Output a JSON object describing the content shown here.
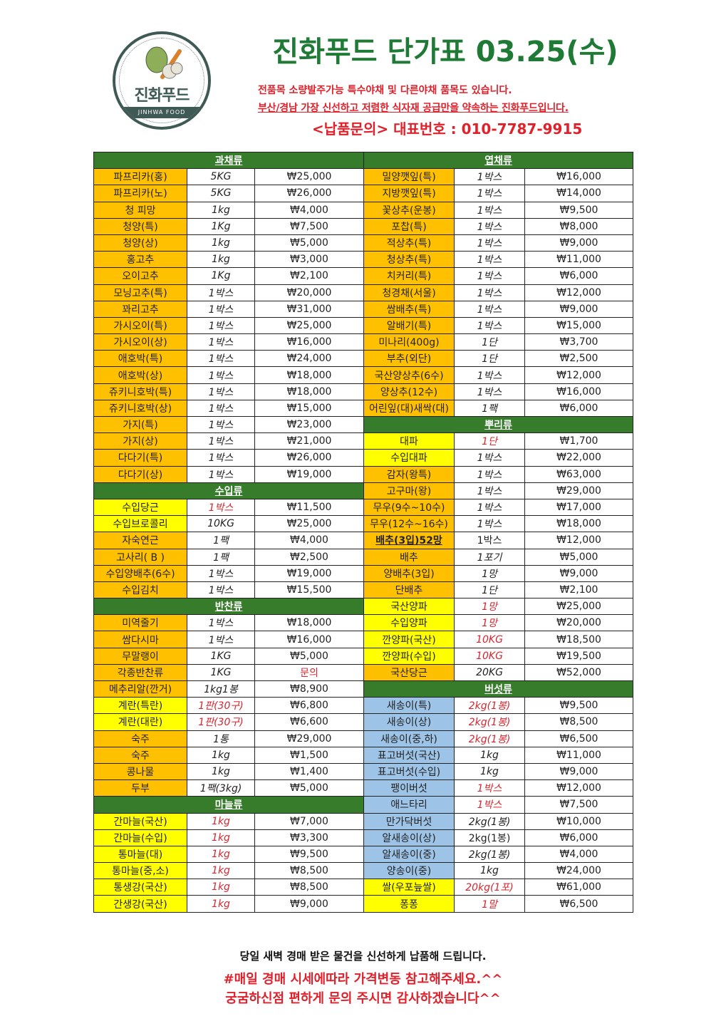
{
  "logo": {
    "name": "진화푸드",
    "english": "JINHWA FOOD"
  },
  "header": {
    "title": "진화푸드 단가표 03.25(수)",
    "line1": "전품목 소량발주가능 특수야채 및 다른야채 품목도 있습니다.",
    "line2": "부산/경남 가장 신선하고 저렴한 식자재 공급만을 약속하는 진화푸드입니다.",
    "phone": "<납품문의> 대표번호 : 010-7787-9915"
  },
  "colors": {
    "header_green": "#367c2b",
    "o": "#FFC000",
    "y": "#FFFF00",
    "b": "#9DC3E6",
    "red": "#d8262e",
    "title_green": "#1f7a36"
  },
  "left": [
    {
      "header": "과채류"
    },
    {
      "name": "파프리카(홍)",
      "unit": "5KG",
      "price": "₩25,000",
      "bg": "o"
    },
    {
      "name": "파프리카(노)",
      "unit": "5KG",
      "price": "₩26,000",
      "bg": "o"
    },
    {
      "name": "청 피망",
      "unit": "1kg",
      "price": "₩4,000",
      "bg": "o"
    },
    {
      "name": "청양(특)",
      "unit": "1Kg",
      "price": "₩7,500",
      "bg": "o"
    },
    {
      "name": "청양(상)",
      "unit": "1kg",
      "price": "₩5,000",
      "bg": "o"
    },
    {
      "name": "홍고추",
      "unit": "1kg",
      "price": "₩3,000",
      "bg": "o"
    },
    {
      "name": "오이고추",
      "unit": "1Kg",
      "price": "₩2,100",
      "bg": "o"
    },
    {
      "name": "모닝고추(특)",
      "unit": "1박스",
      "price": "₩20,000",
      "bg": "o"
    },
    {
      "name": "꽈리고추",
      "unit": "1박스",
      "price": "₩31,000",
      "bg": "o"
    },
    {
      "name": "가시오이(특)",
      "unit": "1박스",
      "price": "₩25,000",
      "bg": "o"
    },
    {
      "name": "가시오이(상)",
      "unit": "1박스",
      "price": "₩16,000",
      "bg": "o"
    },
    {
      "name": "애호박(특)",
      "unit": "1박스",
      "price": "₩24,000",
      "bg": "o"
    },
    {
      "name": "애호박(상)",
      "unit": "1박스",
      "price": "₩18,000",
      "bg": "o"
    },
    {
      "name": "쥬키니호박(특)",
      "unit": "1박스",
      "price": "₩18,000",
      "bg": "o"
    },
    {
      "name": "쥬키니호박(상)",
      "unit": "1박스",
      "price": "₩15,000",
      "bg": "o"
    },
    {
      "name": "가지(특)",
      "unit": "1박스",
      "price": "₩23,000",
      "bg": "o"
    },
    {
      "name": "가지(상)",
      "unit": "1박스",
      "price": "₩21,000",
      "bg": "o"
    },
    {
      "name": "다다기(특)",
      "unit": "1박스",
      "price": "₩26,000",
      "bg": "o"
    },
    {
      "name": "다다기(상)",
      "unit": "1박스",
      "price": "₩19,000",
      "bg": "o"
    },
    {
      "header": "수입류"
    },
    {
      "name": "수입당근",
      "unit": "1박스",
      "price": "₩11,500",
      "bg": "y",
      "unit_red": true
    },
    {
      "name": "수입브로콜리",
      "unit": "10KG",
      "price": "₩25,000",
      "bg": "y"
    },
    {
      "name": "자숙연근",
      "unit": "1팩",
      "price": "₩4,000",
      "bg": "o"
    },
    {
      "name": "고사리( B )",
      "unit": "1팩",
      "price": "₩2,500",
      "bg": "o"
    },
    {
      "name": "수입양배추(6수)",
      "unit": "1박스",
      "price": "₩19,000",
      "bg": "o"
    },
    {
      "name": "수입김치",
      "unit": "1박스",
      "price": "₩15,500",
      "bg": "o"
    },
    {
      "header": "반찬류"
    },
    {
      "name": "미역줄기",
      "unit": "1박스",
      "price": "₩18,000",
      "bg": "o"
    },
    {
      "name": "쌈다시마",
      "unit": "1박스",
      "price": "₩16,000",
      "bg": "o"
    },
    {
      "name": "무말랭이",
      "unit": "1KG",
      "price": "₩5,000",
      "bg": "o"
    },
    {
      "name": "각종반찬류",
      "unit": "1KG",
      "price": "문의",
      "bg": "o",
      "price_red": true
    },
    {
      "name": "메추리알(깐거)",
      "unit": "1kg1봉",
      "price": "₩8,900",
      "bg": "o"
    },
    {
      "name": "계란(특란)",
      "unit": "1판(30구)",
      "price": "₩6,800",
      "bg": "y",
      "unit_red": true
    },
    {
      "name": "계란(대란)",
      "unit": "1판(30구)",
      "price": "₩6,600",
      "bg": "y",
      "unit_red": true
    },
    {
      "name": "숙주",
      "unit": "1통",
      "price": "₩29,000",
      "bg": "o"
    },
    {
      "name": "숙주",
      "unit": "1kg",
      "price": "₩1,500",
      "bg": "o"
    },
    {
      "name": "콩나물",
      "unit": "1kg",
      "price": "₩1,400",
      "bg": "o"
    },
    {
      "name": "두부",
      "unit": "1팩(3kg)",
      "price": "₩5,000",
      "bg": "o"
    },
    {
      "header": "마늘류"
    },
    {
      "name": "간마늘(국산)",
      "unit": "1kg",
      "price": "₩7,000",
      "bg": "y",
      "unit_red": true
    },
    {
      "name": "간마늘(수입)",
      "unit": "1kg",
      "price": "₩3,300",
      "bg": "y",
      "unit_red": true
    },
    {
      "name": "통마늘(대)",
      "unit": "1kg",
      "price": "₩9,500",
      "bg": "y",
      "unit_red": true
    },
    {
      "name": "통마늘(중,소)",
      "unit": "1kg",
      "price": "₩8,500",
      "bg": "y",
      "unit_red": true
    },
    {
      "name": "통생강(국산)",
      "unit": "1kg",
      "price": "₩8,500",
      "bg": "y",
      "unit_red": true
    },
    {
      "name": "간생강(국산)",
      "unit": "1kg",
      "price": "₩9,000",
      "bg": "y",
      "unit_red": true
    }
  ],
  "right": [
    {
      "header": "엽채류"
    },
    {
      "name": "밀양깻잎(특)",
      "unit": "1박스",
      "price": "₩16,000",
      "bg": "o"
    },
    {
      "name": "지방깻잎(특)",
      "unit": "1박스",
      "price": "₩14,000",
      "bg": "o"
    },
    {
      "name": "꽃상추(운봉)",
      "unit": "1박스",
      "price": "₩9,500",
      "bg": "o"
    },
    {
      "name": "포찹(특)",
      "unit": "1박스",
      "price": "₩8,000",
      "bg": "o"
    },
    {
      "name": "적상추(특)",
      "unit": "1박스",
      "price": "₩9,000",
      "bg": "o"
    },
    {
      "name": "청상추(특)",
      "unit": "1박스",
      "price": "₩11,000",
      "bg": "o"
    },
    {
      "name": "치커리(특)",
      "unit": "1박스",
      "price": "₩6,000",
      "bg": "o"
    },
    {
      "name": "청경채(서울)",
      "unit": "1박스",
      "price": "₩12,000",
      "bg": "o"
    },
    {
      "name": "쌈배추(특)",
      "unit": "1박스",
      "price": "₩9,000",
      "bg": "o"
    },
    {
      "name": "알배기(특)",
      "unit": "1박스",
      "price": "₩15,000",
      "bg": "o"
    },
    {
      "name": "미나리(400g)",
      "unit": "1단",
      "price": "₩3,700",
      "bg": "o"
    },
    {
      "name": "부추(외단)",
      "unit": "1단",
      "price": "₩2,500",
      "bg": "o"
    },
    {
      "name": "국산양상추(6수)",
      "unit": "1박스",
      "price": "₩12,000",
      "bg": "o"
    },
    {
      "name": "양상추(12수)",
      "unit": "1박스",
      "price": "₩16,000",
      "bg": "o"
    },
    {
      "name": "어린잎(대)새싹(대)",
      "unit": "1팩",
      "price": "₩6,000",
      "bg": "o"
    },
    {
      "header": "뿌리류"
    },
    {
      "name": "대파",
      "unit": "1단",
      "price": "₩1,700",
      "bg": "y",
      "unit_red": true
    },
    {
      "name": "수입대파",
      "unit": "1박스",
      "price": "₩22,000",
      "bg": "y"
    },
    {
      "name": "감자(왕특)",
      "unit": "1박스",
      "price": "₩63,000",
      "bg": "o"
    },
    {
      "name": "고구마(왕)",
      "unit": "1박스",
      "price": "₩29,000",
      "bg": "o"
    },
    {
      "name": "무우(9수~10수)",
      "unit": "1박스",
      "price": "₩17,000",
      "bg": "o"
    },
    {
      "name": "무우(12수~16수)",
      "unit": "1박스",
      "price": "₩18,000",
      "bg": "o"
    },
    {
      "name": "배추(3입)52망",
      "unit": "1박스",
      "price": "₩12,000",
      "bg": "o",
      "bold": true
    },
    {
      "name": "배추",
      "unit": "1포기",
      "price": "₩5,000",
      "bg": "o"
    },
    {
      "name": "양배추(3입)",
      "unit": "1망",
      "price": "₩9,000",
      "bg": "o"
    },
    {
      "name": "단배추",
      "unit": "1단",
      "price": "₩2,100",
      "bg": "o"
    },
    {
      "name": "국산양파",
      "unit": "1망",
      "price": "₩25,000",
      "bg": "y",
      "unit_red": true
    },
    {
      "name": "수입양파",
      "unit": "1망",
      "price": "₩20,000",
      "bg": "y",
      "unit_red": true
    },
    {
      "name": "깐양파(국산)",
      "unit": "10KG",
      "price": "₩18,500",
      "bg": "y",
      "unit_red": true
    },
    {
      "name": "깐양파(수입)",
      "unit": "10KG",
      "price": "₩19,500",
      "bg": "y",
      "unit_red": true
    },
    {
      "name": "국산당근",
      "unit": "20KG",
      "price": "₩52,000",
      "bg": "o"
    },
    {
      "header": "버섯류"
    },
    {
      "name": "새송이(특)",
      "unit": "2kg(1봉)",
      "price": "₩9,500",
      "bg": "b",
      "unit_red": true
    },
    {
      "name": "새송이(상)",
      "unit": "2kg(1봉)",
      "price": "₩8,500",
      "bg": "b",
      "unit_red": true
    },
    {
      "name": "새송이(중,하)",
      "unit": "2kg(1봉)",
      "price": "₩6,500",
      "bg": "b",
      "unit_red": true
    },
    {
      "name": "표고버섯(국산)",
      "unit": "1kg",
      "price": "₩11,000",
      "bg": "b"
    },
    {
      "name": "표고버섯(수입)",
      "unit": "1kg",
      "price": "₩9,000",
      "bg": "b"
    },
    {
      "name": "팽이버섯",
      "unit": "1박스",
      "price": "₩12,000",
      "bg": "b",
      "unit_red": true
    },
    {
      "name": "애느타리",
      "unit": "1박스",
      "price": "₩7,500",
      "bg": "b",
      "unit_red": true
    },
    {
      "name": "만가닥버섯",
      "unit": "2kg(1봉)",
      "price": "₩10,000",
      "bg": "b"
    },
    {
      "name": "알새송이(상)",
      "unit": "2kg(1봉)",
      "price": "₩6,000",
      "bg": "b",
      "upright": true
    },
    {
      "name": "알새송이(중)",
      "unit": "2kg(1봉)",
      "price": "₩4,000",
      "bg": "b"
    },
    {
      "name": "양송이(중)",
      "unit": "1kg",
      "price": "₩24,000",
      "bg": "b"
    },
    {
      "name": "쌀(우포늪쌀)",
      "unit": "20kg(1포)",
      "price": "₩61,000",
      "bg": "y",
      "unit_red": true
    },
    {
      "name": "퐁퐁",
      "unit": "1말",
      "price": "₩6,500",
      "bg": "y",
      "unit_red": true
    }
  ],
  "footer": {
    "line1": "당일 새벽 경매 받은 물건을 신선하게 납품해 드립니다.",
    "line2": "#매일 경매 시세에따라 가격변동 참고해주세요.^^",
    "line3": "궁굼하신점 편하게 문의 주시면 감사하겠습니다^^"
  }
}
